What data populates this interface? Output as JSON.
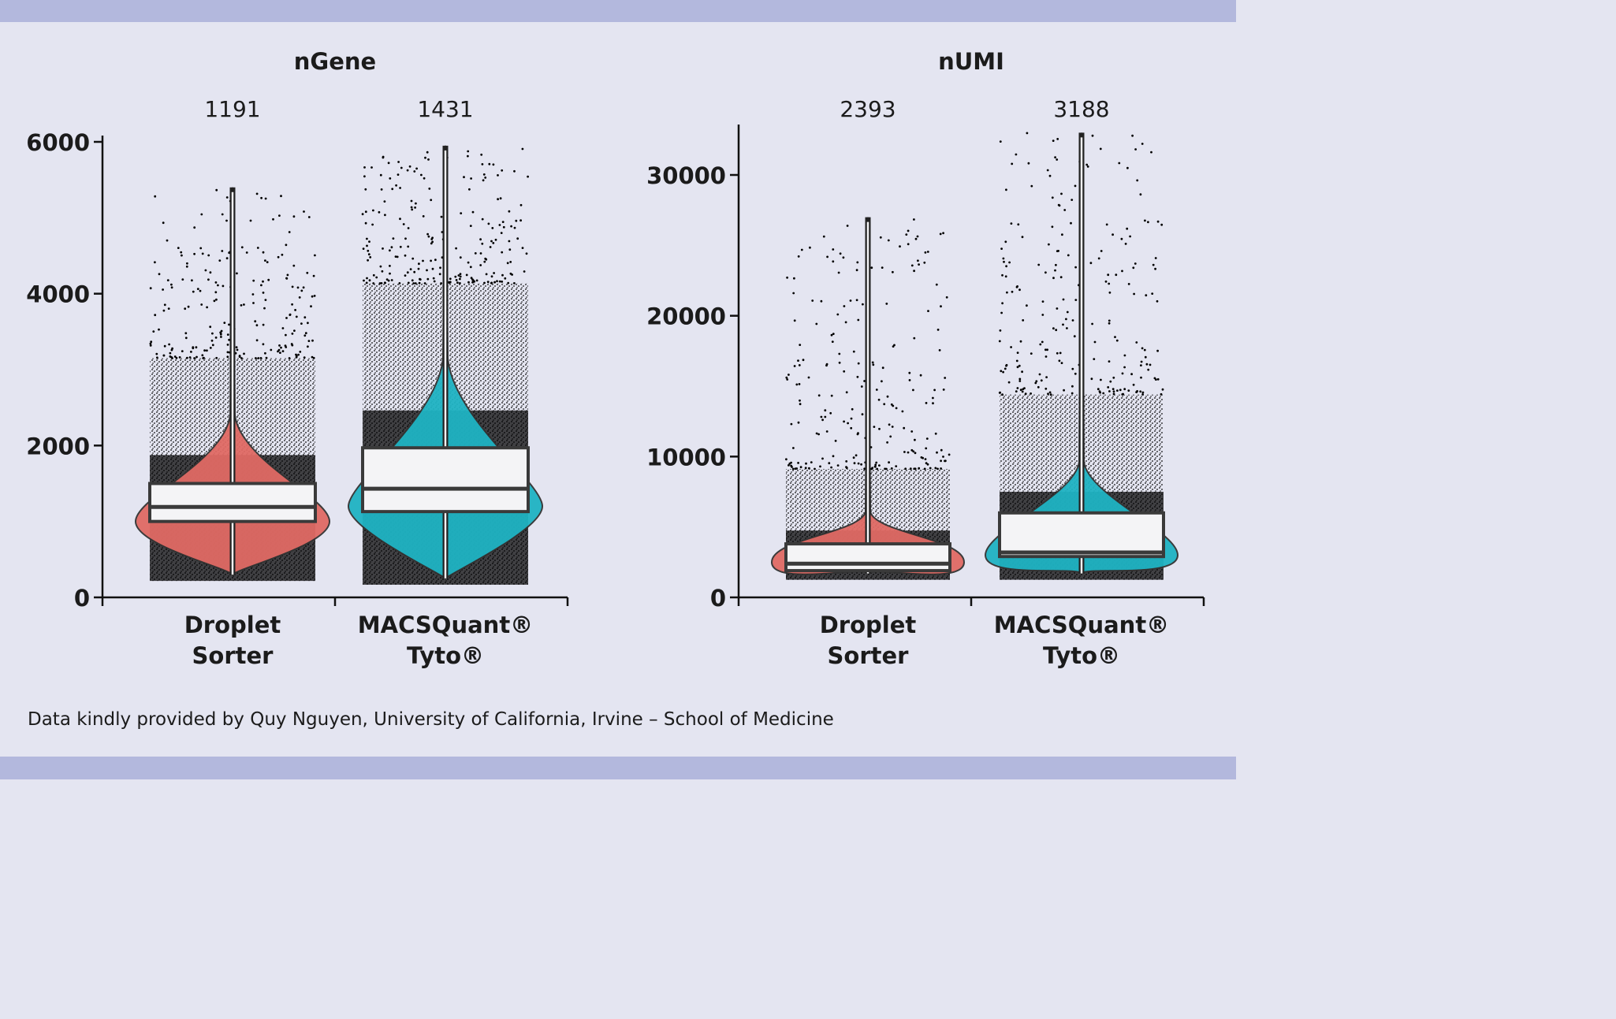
{
  "colors": {
    "background": "#e4e5f1",
    "band": "#b3b8dd",
    "droplet_sorter": "#e06a64",
    "macsquant_tyto": "#1fb3c3",
    "points": "#000000",
    "box_fill": "#f4f4f6",
    "box_stroke": "#3a3a3a"
  },
  "caption": "Data kindly provided by Quy Nguyen, University of California, Irvine – School of Medicine",
  "chart_data": [
    {
      "type": "violin-box",
      "title": "nGene",
      "categories": [
        {
          "line1": "Droplet",
          "line2": "Sorter"
        },
        {
          "line1": "MACSQuant®",
          "line2": "Tyto®"
        }
      ],
      "medians_label": [
        "1191",
        "1431"
      ],
      "yticks": [
        "0",
        "2000",
        "4000",
        "6000"
      ],
      "ylim": [
        0,
        6000
      ],
      "series": [
        {
          "name": "Droplet Sorter",
          "color": "droplet_sorter",
          "median": 1191,
          "q1": 1000,
          "q3": 1500,
          "min": 300,
          "max": 5400,
          "mode": 1000
        },
        {
          "name": "MACSQuant Tyto",
          "color": "macsquant_tyto",
          "median": 1431,
          "q1": 1130,
          "q3": 1970,
          "min": 250,
          "max": 5950,
          "mode": 1200
        }
      ]
    },
    {
      "type": "violin-box",
      "title": "nUMI",
      "categories": [
        {
          "line1": "Droplet",
          "line2": "Sorter"
        },
        {
          "line1": "MACSQuant®",
          "line2": "Tyto®"
        }
      ],
      "medians_label": [
        "2393",
        "3188"
      ],
      "yticks": [
        "0",
        "10000",
        "20000",
        "30000"
      ],
      "ylim": [
        0,
        35000
      ],
      "series": [
        {
          "name": "Droplet Sorter",
          "color": "droplet_sorter",
          "median": 2393,
          "q1": 1900,
          "q3": 3800,
          "min": 1700,
          "max": 27000,
          "mode": 2500
        },
        {
          "name": "MACSQuant Tyto",
          "color": "macsquant_tyto",
          "median": 3188,
          "q1": 2900,
          "q3": 6000,
          "min": 1700,
          "max": 33000,
          "mode": 3000
        }
      ]
    }
  ]
}
